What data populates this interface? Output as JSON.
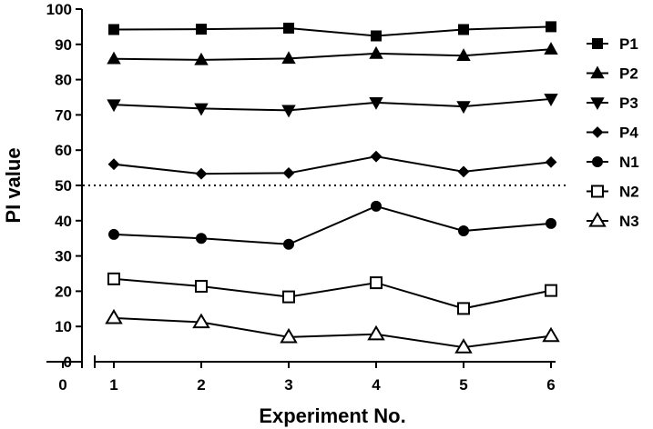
{
  "chart_data": {
    "type": "line",
    "xlabel": "Experiment No.",
    "ylabel": "PI value",
    "x": [
      1,
      2,
      3,
      4,
      5,
      6
    ],
    "xticks": [
      0,
      1,
      2,
      3,
      4,
      5,
      6
    ],
    "xlim": [
      0,
      6
    ],
    "x_axis_break": true,
    "ylim": [
      0,
      100
    ],
    "yticks": [
      0,
      10,
      20,
      30,
      40,
      50,
      60,
      70,
      80,
      90,
      100
    ],
    "reference_line": {
      "y": 50,
      "style": "dotted"
    },
    "grid": false,
    "legend_position": "right",
    "series": [
      {
        "name": "P1",
        "marker": "square-filled",
        "values": [
          94.2,
          94.3,
          94.6,
          92.4,
          94.2,
          95.0
        ]
      },
      {
        "name": "P2",
        "marker": "triangle-filled",
        "values": [
          85.9,
          85.6,
          86.0,
          87.4,
          86.8,
          88.6
        ]
      },
      {
        "name": "P3",
        "marker": "triangle-down-filled",
        "values": [
          72.9,
          71.8,
          71.3,
          73.5,
          72.4,
          74.5
        ]
      },
      {
        "name": "P4",
        "marker": "diamond-filled",
        "values": [
          56.0,
          53.3,
          53.5,
          58.2,
          53.9,
          56.6
        ]
      },
      {
        "name": "N1",
        "marker": "circle-filled",
        "values": [
          36.1,
          35.0,
          33.3,
          44.1,
          37.1,
          39.2
        ]
      },
      {
        "name": "N2",
        "marker": "square-open",
        "values": [
          23.5,
          21.4,
          18.4,
          22.4,
          15.1,
          20.2
        ]
      },
      {
        "name": "N3",
        "marker": "triangle-open",
        "values": [
          12.4,
          11.2,
          7.0,
          7.8,
          4.1,
          7.3
        ]
      }
    ]
  }
}
